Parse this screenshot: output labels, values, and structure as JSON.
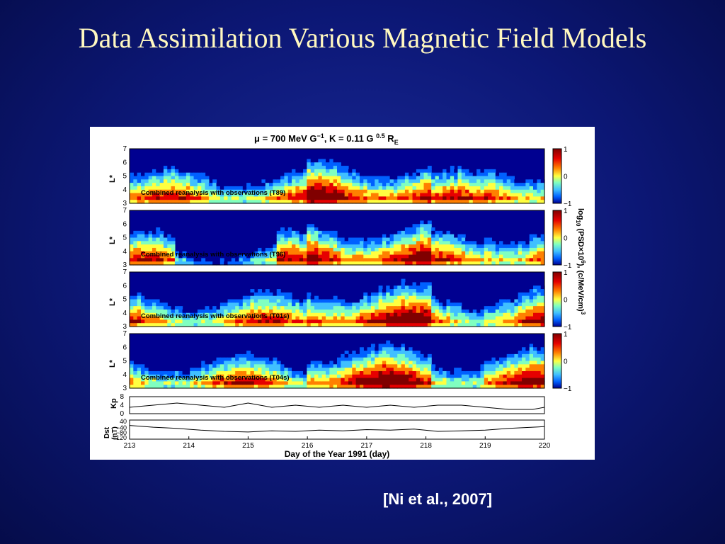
{
  "slide": {
    "title": "Data Assimilation Various Magnetic Field Models",
    "citation": "[Ni et al., 2007]"
  },
  "figure": {
    "header": {
      "mu_symbol": "μ",
      "mu_text": " = 700 MeV G",
      "mu_exp": "−1",
      "k_text": ", K = 0.11 G ",
      "k_exp": "0.5",
      "re": " R",
      "re_sub": "E"
    },
    "panels": [
      {
        "caption": "Combined reanalysis with observations (T89)",
        "ylabel": "L*",
        "yticks": [
          "7",
          "6",
          "5",
          "4",
          "3"
        ]
      },
      {
        "caption": "Combined reanalysis with observations (T96)",
        "ylabel": "L*",
        "yticks": [
          "7",
          "6",
          "5",
          "4",
          "3"
        ]
      },
      {
        "caption": "Combined reanalysis with observations (T01s)",
        "ylabel": "L*",
        "yticks": [
          "7",
          "6",
          "5",
          "4",
          "3"
        ]
      },
      {
        "caption": "Combined reanalysis with observations (T04s)",
        "ylabel": "L*",
        "yticks": [
          "7",
          "6",
          "5",
          "4",
          "3"
        ]
      }
    ],
    "colorbar": {
      "ticks": [
        "1",
        "0",
        "−1"
      ],
      "label": "log",
      "label_sub": "10",
      "label_rest": " (PSD×10",
      "label_exp": "6",
      "label_end": "), (c/MeV/cm)",
      "label_end_exp": "3",
      "colors": [
        "#800000",
        "#e60000",
        "#ff8000",
        "#ffff40",
        "#80ffc0",
        "#40c0ff",
        "#0060ff",
        "#000090"
      ]
    },
    "kp": {
      "label": "Kp",
      "yticks": [
        "8",
        "4",
        "0"
      ]
    },
    "dst": {
      "label": "Dst",
      "label2": "(nT)",
      "yticks": [
        "40",
        "−40",
        "−80",
        "−120"
      ],
      "ytick_stack": "−10\n−60"
    },
    "xaxis": {
      "ticks": [
        "213",
        "214",
        "215",
        "216",
        "217",
        "218",
        "219",
        "220"
      ],
      "label": "Day of the Year 1991 (day)"
    }
  },
  "chart_data": {
    "type": "heatmap",
    "title": "μ = 700 MeV G−1, K = 0.11 G0.5 RE",
    "xlabel": "Day of the Year 1991 (day)",
    "xlim": [
      213,
      220
    ],
    "panels": [
      {
        "model": "T89",
        "ylabel": "L*",
        "ylim": [
          3,
          7
        ]
      },
      {
        "model": "T96",
        "ylabel": "L*",
        "ylim": [
          3,
          7
        ]
      },
      {
        "model": "T01s",
        "ylabel": "L*",
        "ylim": [
          3,
          7
        ]
      },
      {
        "model": "T04s",
        "ylabel": "L*",
        "ylim": [
          3,
          7
        ]
      }
    ],
    "colorbar": {
      "label": "log10 (PSD×10^6), (c/MeV/cm)^3",
      "range": [
        -1,
        1
      ]
    },
    "kp": {
      "ylabel": "Kp",
      "ylim": [
        0,
        8
      ],
      "x": [
        213,
        213.4,
        213.8,
        214.2,
        214.6,
        215,
        215.4,
        215.8,
        216.2,
        216.6,
        217,
        217.4,
        217.8,
        218.2,
        218.6,
        219,
        219.4,
        219.8,
        220
      ],
      "y": [
        3,
        4,
        5,
        4,
        3,
        5,
        3,
        4,
        3,
        4,
        3,
        4,
        3,
        4,
        4,
        3,
        2,
        2,
        3
      ]
    },
    "dst": {
      "ylabel": "Dst (nT)",
      "ylim": [
        -120,
        40
      ],
      "x": [
        213,
        213.4,
        213.8,
        214.2,
        214.6,
        215,
        215.4,
        215.8,
        216.2,
        216.6,
        217,
        217.4,
        217.8,
        218.2,
        218.6,
        219,
        219.4,
        219.8,
        220
      ],
      "y": [
        -5,
        -20,
        -30,
        -45,
        -55,
        -60,
        -50,
        -55,
        -45,
        -50,
        -40,
        -45,
        -35,
        -55,
        -50,
        -45,
        -30,
        -20,
        -15
      ]
    }
  }
}
